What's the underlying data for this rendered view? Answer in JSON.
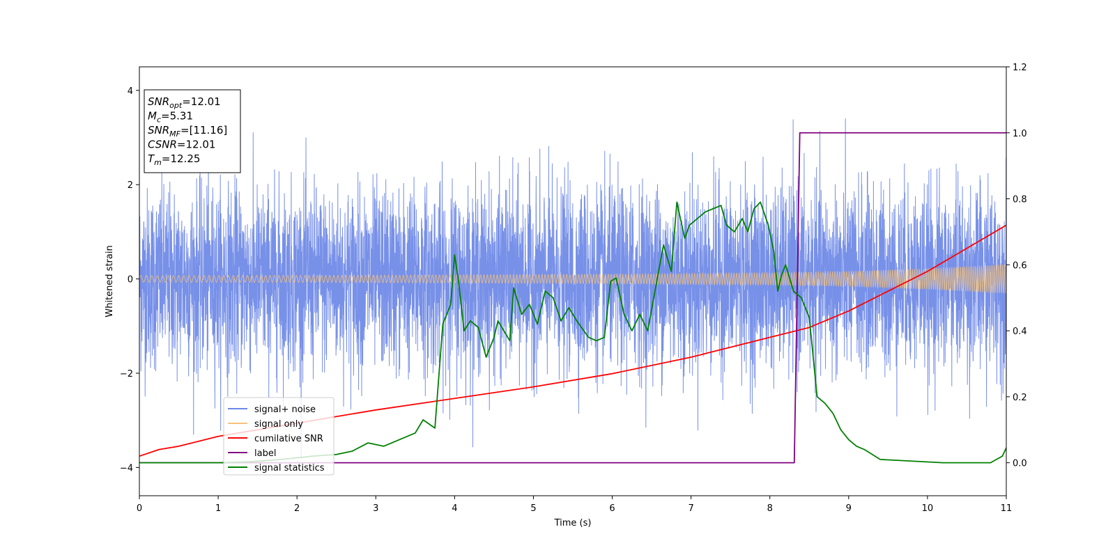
{
  "chart_data": {
    "type": "line",
    "xlabel": "Time (s)",
    "ylabel": "Whitened strain",
    "xlim": [
      0,
      11
    ],
    "ylim": [
      -4.6,
      4.5
    ],
    "y2lim": [
      -0.1,
      1.2
    ],
    "x_ticks": [
      "0",
      "1",
      "2",
      "3",
      "4",
      "5",
      "6",
      "7",
      "8",
      "9",
      "10",
      "11"
    ],
    "y_ticks": [
      "−4",
      "−2",
      "0",
      "2",
      "4"
    ],
    "y2_ticks": [
      "0.0",
      "0.2",
      "0.4",
      "0.6",
      "0.8",
      "1.0",
      "1.2"
    ],
    "info_box": [
      {
        "sym": "SNR",
        "sub": "opt",
        "val": "=12.01"
      },
      {
        "sym": "M",
        "sub": "c",
        "val": "=5.31"
      },
      {
        "sym": "SNR",
        "sub": "MF",
        "val": "=[11.16]"
      },
      {
        "sym": "CSNR",
        "sub": "",
        "val": "=12.01"
      },
      {
        "sym": "T",
        "sub": "m",
        "val": "=12.25"
      }
    ],
    "legend_position": "lower-left",
    "legend": [
      {
        "label": "signal+ noise",
        "color": "#6b87e6"
      },
      {
        "label": "signal only",
        "color": "#f5c27a"
      },
      {
        "label": "cumilative SNR",
        "color": "#ff0000"
      },
      {
        "label": "label",
        "color": "#800080"
      },
      {
        "label": "signal statistics",
        "color": "#008000"
      }
    ],
    "series": [
      {
        "name": "signal+ noise",
        "axis": "left",
        "style": "noise band",
        "envelope_typical": [
          -1.6,
          1.6
        ],
        "envelope_extreme": [
          -4.0,
          4.1
        ]
      },
      {
        "name": "signal only",
        "axis": "left",
        "style": "chirp",
        "amplitude": {
          "x": [
            0,
            2,
            4,
            6,
            8,
            9,
            10,
            11
          ],
          "y": [
            0.07,
            0.075,
            0.085,
            0.1,
            0.13,
            0.16,
            0.22,
            0.31
          ]
        }
      },
      {
        "name": "cumilative SNR",
        "axis": "right",
        "x": [
          0,
          0.25,
          0.5,
          1,
          2,
          3,
          4,
          5,
          6,
          7,
          8,
          8.5,
          9,
          9.5,
          10,
          10.5,
          11
        ],
        "y": [
          0.02,
          0.04,
          0.05,
          0.08,
          0.12,
          0.16,
          0.195,
          0.23,
          0.27,
          0.32,
          0.38,
          0.41,
          0.46,
          0.52,
          0.58,
          0.65,
          0.72
        ]
      },
      {
        "name": "label",
        "axis": "right",
        "x": [
          0,
          8.31,
          8.38,
          11
        ],
        "y": [
          0,
          0,
          1,
          1
        ]
      },
      {
        "name": "signal statistics",
        "axis": "right",
        "x": [
          0,
          1.0,
          1.4,
          1.8,
          2.2,
          2.5,
          2.7,
          2.9,
          3.1,
          3.25,
          3.5,
          3.6,
          3.75,
          3.85,
          3.95,
          4.0,
          4.05,
          4.12,
          4.2,
          4.3,
          4.4,
          4.5,
          4.55,
          4.7,
          4.75,
          4.85,
          4.95,
          5.05,
          5.15,
          5.25,
          5.35,
          5.45,
          5.55,
          5.7,
          5.8,
          5.9,
          5.98,
          6.05,
          6.15,
          6.25,
          6.35,
          6.45,
          6.55,
          6.65,
          6.75,
          6.82,
          6.92,
          6.98,
          7.08,
          7.18,
          7.28,
          7.38,
          7.45,
          7.55,
          7.65,
          7.72,
          7.8,
          7.88,
          7.98,
          8.05,
          8.1,
          8.15,
          8.2,
          8.3,
          8.4,
          8.5,
          8.6,
          8.7,
          8.8,
          8.9,
          9.0,
          9.1,
          9.2,
          9.4,
          9.8,
          10.2,
          10.6,
          10.8,
          10.95,
          11.0
        ],
        "y": [
          0.0,
          0.0,
          0.003,
          0.01,
          0.02,
          0.025,
          0.035,
          0.06,
          0.05,
          0.065,
          0.09,
          0.13,
          0.105,
          0.42,
          0.48,
          0.63,
          0.55,
          0.4,
          0.43,
          0.41,
          0.32,
          0.38,
          0.43,
          0.37,
          0.53,
          0.45,
          0.48,
          0.42,
          0.52,
          0.5,
          0.43,
          0.47,
          0.43,
          0.38,
          0.37,
          0.38,
          0.55,
          0.56,
          0.45,
          0.4,
          0.45,
          0.4,
          0.53,
          0.66,
          0.58,
          0.79,
          0.68,
          0.72,
          0.74,
          0.76,
          0.77,
          0.78,
          0.72,
          0.7,
          0.74,
          0.7,
          0.77,
          0.79,
          0.72,
          0.64,
          0.52,
          0.57,
          0.6,
          0.52,
          0.5,
          0.44,
          0.2,
          0.18,
          0.15,
          0.1,
          0.07,
          0.05,
          0.04,
          0.01,
          0.005,
          0.0,
          0.0,
          0.0,
          0.02,
          0.045
        ]
      }
    ]
  }
}
